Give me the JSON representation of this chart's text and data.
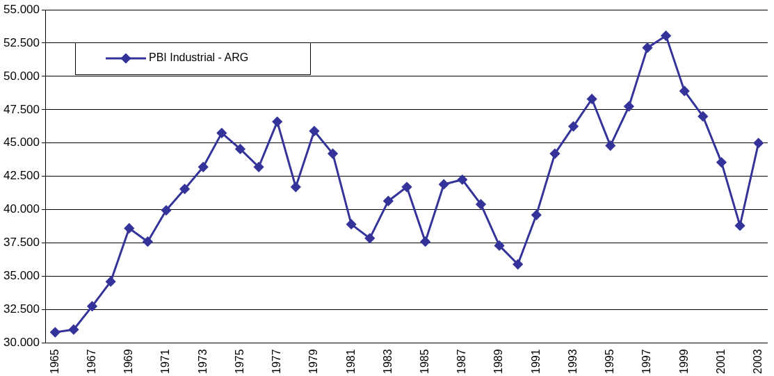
{
  "chart_data": {
    "type": "line",
    "categories": [
      "1965",
      null,
      "1967",
      null,
      "1969",
      null,
      "1971",
      null,
      "1973",
      null,
      "1975",
      null,
      "1977",
      null,
      "1979",
      null,
      "1981",
      null,
      "1983",
      null,
      "1985",
      null,
      "1987",
      null,
      "1989",
      null,
      "1991",
      null,
      "1993",
      null,
      "1995",
      null,
      "1997",
      null,
      "1999",
      null,
      "2001",
      null,
      "2003"
    ],
    "series": [
      {
        "name": "PBI Industrial - ARG",
        "color": "#333399",
        "values": [
          30800,
          31000,
          32750,
          34600,
          38600,
          37600,
          39950,
          41550,
          43200,
          45750,
          44550,
          43200,
          46600,
          41700,
          45900,
          44200,
          38900,
          37850,
          40650,
          41700,
          37600,
          41900,
          42250,
          40400,
          37300,
          35900,
          39600,
          44200,
          46250,
          48300,
          44800,
          47750,
          52150,
          53050,
          48900,
          47000,
          43550,
          38800,
          45000
        ]
      }
    ],
    "ylim": [
      30000,
      55000
    ],
    "yticks": [
      {
        "value": 30000,
        "label": "30.000"
      },
      {
        "value": 32500,
        "label": "32.500"
      },
      {
        "value": 35000,
        "label": "35.000"
      },
      {
        "value": 37500,
        "label": "37.500"
      },
      {
        "value": 40000,
        "label": "40.000"
      },
      {
        "value": 42500,
        "label": "42.500"
      },
      {
        "value": 45000,
        "label": "45.000"
      },
      {
        "value": 47500,
        "label": "47.500"
      },
      {
        "value": 50000,
        "label": "50.000"
      },
      {
        "value": 52500,
        "label": "52.500"
      },
      {
        "value": 55000,
        "label": "55.000"
      }
    ],
    "grid": "y",
    "legend": "top left",
    "marker": "diamond",
    "line_style": "solid"
  }
}
